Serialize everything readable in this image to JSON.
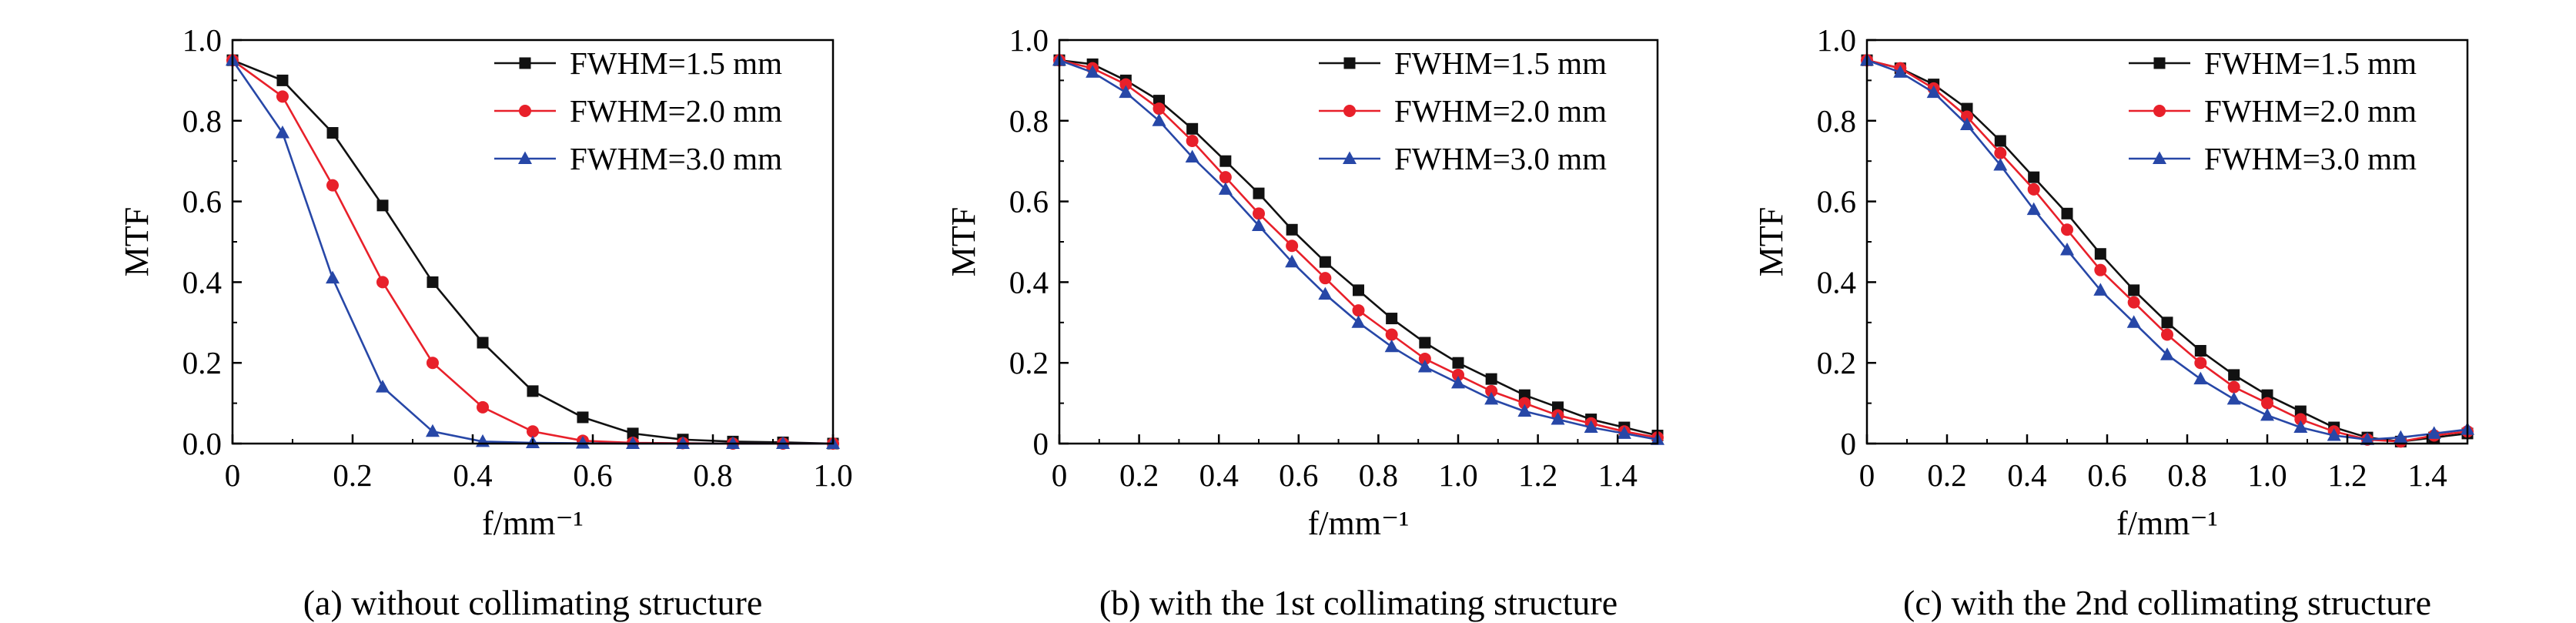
{
  "chart_data": [
    {
      "type": "line",
      "caption": "(a) without collimating structure",
      "xlabel": "f/mm⁻¹",
      "ylabel": "MTF",
      "xlim": [
        0,
        1.0
      ],
      "ylim": [
        0,
        1.0
      ],
      "xticks": [
        "0",
        "0.2",
        "0.4",
        "0.6",
        "0.8",
        "1.0"
      ],
      "yticks": [
        "0.0",
        "0.2",
        "0.4",
        "0.6",
        "0.8",
        "1.0"
      ],
      "legend_position": "top-right",
      "x": [
        0,
        0.0833,
        0.1667,
        0.25,
        0.3333,
        0.4167,
        0.5,
        0.5833,
        0.6667,
        0.75,
        0.8333,
        0.9167,
        1.0
      ],
      "series": [
        {
          "name": "FWHM=1.5 mm",
          "color": "#111111",
          "marker": "square",
          "values": [
            0.95,
            0.9,
            0.77,
            0.59,
            0.4,
            0.25,
            0.13,
            0.065,
            0.025,
            0.01,
            0.005,
            0.003,
            0.0
          ]
        },
        {
          "name": "FWHM=2.0 mm",
          "color": "#e8202a",
          "marker": "circle",
          "values": [
            0.95,
            0.86,
            0.64,
            0.4,
            0.2,
            0.09,
            0.03,
            0.007,
            0.002,
            0.001,
            0.0,
            0.0,
            0.0
          ]
        },
        {
          "name": "FWHM=3.0 mm",
          "color": "#2747a7",
          "marker": "triangle",
          "values": [
            0.95,
            0.77,
            0.41,
            0.14,
            0.03,
            0.005,
            0.002,
            0.001,
            0.0,
            0.0,
            0.0,
            0.0,
            0.0
          ]
        }
      ]
    },
    {
      "type": "line",
      "caption": "(b) with the 1st collimating structure",
      "xlabel": "f/mm⁻¹",
      "ylabel": "MTF",
      "xlim": [
        0,
        1.5
      ],
      "ylim": [
        0,
        1.0
      ],
      "xticks": [
        "0",
        "0.2",
        "0.4",
        "0.6",
        "0.8",
        "1.0",
        "1.2",
        "1.4"
      ],
      "yticks": [
        "0",
        "0.2",
        "0.4",
        "0.6",
        "0.8",
        "1.0"
      ],
      "legend_position": "top-right",
      "x": [
        0,
        0.0833,
        0.1667,
        0.25,
        0.3333,
        0.4167,
        0.5,
        0.5833,
        0.6667,
        0.75,
        0.8333,
        0.9167,
        1.0,
        1.0833,
        1.1667,
        1.25,
        1.3333,
        1.4167,
        1.5
      ],
      "series": [
        {
          "name": "FWHM=1.5 mm",
          "color": "#111111",
          "marker": "square",
          "values": [
            0.95,
            0.94,
            0.9,
            0.85,
            0.78,
            0.7,
            0.62,
            0.53,
            0.45,
            0.38,
            0.31,
            0.25,
            0.2,
            0.16,
            0.12,
            0.09,
            0.06,
            0.04,
            0.02
          ]
        },
        {
          "name": "FWHM=2.0 mm",
          "color": "#e8202a",
          "marker": "circle",
          "values": [
            0.95,
            0.93,
            0.89,
            0.83,
            0.75,
            0.66,
            0.57,
            0.49,
            0.41,
            0.33,
            0.27,
            0.21,
            0.17,
            0.13,
            0.1,
            0.07,
            0.05,
            0.03,
            0.015
          ]
        },
        {
          "name": "FWHM=3.0 mm",
          "color": "#2747a7",
          "marker": "triangle",
          "values": [
            0.95,
            0.92,
            0.87,
            0.8,
            0.71,
            0.63,
            0.54,
            0.45,
            0.37,
            0.3,
            0.24,
            0.19,
            0.15,
            0.11,
            0.08,
            0.06,
            0.04,
            0.025,
            0.01
          ]
        }
      ]
    },
    {
      "type": "line",
      "caption": "(c) with the 2nd collimating structure",
      "xlabel": "f/mm⁻¹",
      "ylabel": "MTF",
      "xlim": [
        0,
        1.5
      ],
      "ylim": [
        0,
        1.0
      ],
      "xticks": [
        "0",
        "0.2",
        "0.4",
        "0.6",
        "0.8",
        "1.0",
        "1.2",
        "1.4"
      ],
      "yticks": [
        "0",
        "0.2",
        "0.4",
        "0.6",
        "0.8",
        "1.0"
      ],
      "legend_position": "top-right",
      "x": [
        0,
        0.0833,
        0.1667,
        0.25,
        0.3333,
        0.4167,
        0.5,
        0.5833,
        0.6667,
        0.75,
        0.8333,
        0.9167,
        1.0,
        1.0833,
        1.1667,
        1.25,
        1.3333,
        1.4167,
        1.5
      ],
      "series": [
        {
          "name": "FWHM=1.5 mm",
          "color": "#111111",
          "marker": "square",
          "values": [
            0.95,
            0.93,
            0.89,
            0.83,
            0.75,
            0.66,
            0.57,
            0.47,
            0.38,
            0.3,
            0.23,
            0.17,
            0.12,
            0.08,
            0.04,
            0.015,
            0.005,
            0.015,
            0.025
          ]
        },
        {
          "name": "FWHM=2.0 mm",
          "color": "#e8202a",
          "marker": "circle",
          "values": [
            0.95,
            0.93,
            0.88,
            0.81,
            0.72,
            0.63,
            0.53,
            0.43,
            0.35,
            0.27,
            0.2,
            0.14,
            0.1,
            0.06,
            0.03,
            0.01,
            0.005,
            0.02,
            0.03
          ]
        },
        {
          "name": "FWHM=3.0 mm",
          "color": "#2747a7",
          "marker": "triangle",
          "values": [
            0.95,
            0.92,
            0.87,
            0.79,
            0.69,
            0.58,
            0.48,
            0.38,
            0.3,
            0.22,
            0.16,
            0.11,
            0.07,
            0.04,
            0.02,
            0.01,
            0.015,
            0.025,
            0.035
          ]
        }
      ]
    }
  ]
}
